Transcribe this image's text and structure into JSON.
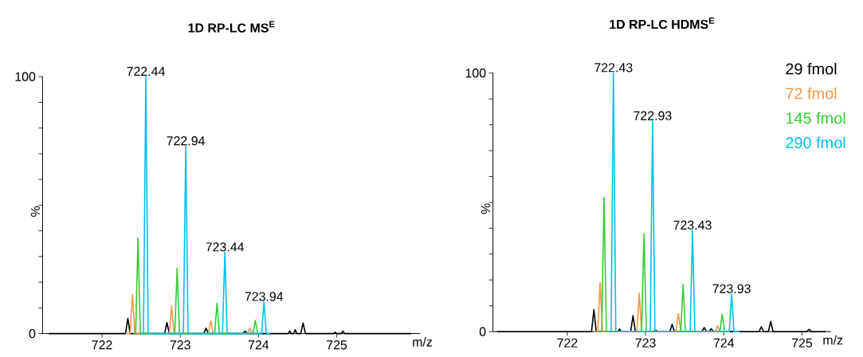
{
  "chart_data": [
    {
      "type": "line",
      "title": "1D RP-LC MS$^{E}$",
      "xlabel": "m/z",
      "ylabel": "%",
      "xlim": [
        721.24,
        726.07
      ],
      "xticks": [
        722,
        723,
        724,
        725
      ],
      "ylim": [
        0,
        100
      ],
      "yticks": [
        0,
        {
          "value": 10,
          "label": null
        },
        {
          "value": 20,
          "label": null
        },
        {
          "value": 30,
          "label": null
        },
        {
          "value": 40,
          "label": null
        },
        {
          "value": 50,
          "label": null
        },
        {
          "value": 60,
          "label": null
        },
        {
          "value": 70,
          "label": null
        },
        {
          "value": 80,
          "label": null
        },
        {
          "value": 90,
          "label": null
        },
        100
      ],
      "annotations": [
        {
          "text": "722.44",
          "x": 722.56,
          "y": 100
        },
        {
          "text": "722.94",
          "x": 723.07,
          "y": 72.9
        },
        {
          "text": "723.44",
          "x": 723.57,
          "y": 31.6
        },
        {
          "text": "723.94",
          "x": 724.07,
          "y": 12.3
        }
      ],
      "series": [
        {
          "color": "#000000",
          "x": [
            721.32,
            722.3,
            722.33,
            722.36,
            722.8,
            722.83,
            722.86,
            723.3,
            723.33,
            723.36,
            723.8,
            723.83,
            723.86,
            724.38,
            724.4,
            724.42,
            724.45,
            724.47,
            724.49,
            724.54,
            724.57,
            724.6,
            724.96,
            724.98,
            725.0,
            725.06,
            725.08,
            725.1,
            725.95
          ],
          "values": [
            0,
            0,
            5.9,
            0,
            0,
            4.3,
            0,
            0,
            2.1,
            0,
            0,
            0.9,
            0,
            0,
            1.0,
            0,
            0,
            1.5,
            0,
            0,
            4.1,
            0,
            0,
            0.5,
            0,
            0,
            1.0,
            0,
            0
          ]
        },
        {
          "color": "#f79646",
          "x": [
            722.3,
            722.36,
            722.39,
            722.42,
            722.86,
            722.89,
            722.92,
            723.36,
            723.39,
            723.42,
            723.86,
            723.89,
            723.92,
            724.0
          ],
          "values": [
            0,
            0,
            15.2,
            0,
            0,
            10.7,
            0,
            0,
            5.0,
            0,
            0,
            2.1,
            0,
            0
          ]
        },
        {
          "color": "#33cc33",
          "x": [
            722.4,
            722.43,
            722.46,
            722.49,
            722.93,
            722.96,
            722.99,
            723.44,
            723.47,
            723.5,
            723.93,
            723.96,
            723.99,
            724.05
          ],
          "values": [
            0,
            0,
            37.2,
            0,
            0,
            25.5,
            0,
            0,
            11.8,
            0,
            0,
            5.1,
            0,
            0
          ]
        },
        {
          "color": "#00c0f0",
          "x": [
            722.5,
            722.53,
            722.56,
            722.59,
            723.04,
            723.07,
            723.1,
            723.54,
            723.57,
            723.6,
            724.04,
            724.07,
            724.1,
            724.15
          ],
          "values": [
            0,
            0,
            100,
            0,
            0,
            72.9,
            0,
            0,
            31.6,
            0,
            0,
            12.3,
            0,
            0
          ]
        }
      ]
    },
    {
      "type": "line",
      "title": "1D RP-LC HDMS$^{E}$",
      "xlabel": "m/z",
      "ylabel": "%",
      "legend": "top right",
      "xlim": [
        721.05,
        725.37
      ],
      "xticks": [
        722,
        723,
        724,
        725
      ],
      "ylim": [
        0,
        100
      ],
      "yticks": [
        0,
        {
          "value": 10,
          "label": null
        },
        {
          "value": 20,
          "label": null
        },
        {
          "value": 30,
          "label": null
        },
        {
          "value": 40,
          "label": null
        },
        {
          "value": 50,
          "label": null
        },
        {
          "value": 60,
          "label": null
        },
        {
          "value": 70,
          "label": null
        },
        {
          "value": 80,
          "label": null
        },
        {
          "value": 90,
          "label": null
        },
        100
      ],
      "annotations": [
        {
          "text": "722.43",
          "x": 722.59,
          "y": 100
        },
        {
          "text": "722.93",
          "x": 723.09,
          "y": 81.4
        },
        {
          "text": "723.43",
          "x": 723.6,
          "y": 39.1
        },
        {
          "text": "723.93",
          "x": 724.1,
          "y": 14.5
        }
      ],
      "series": [
        {
          "name": "29 fmol",
          "color": "#000000",
          "x": [
            721.1,
            722.31,
            722.34,
            722.37,
            722.64,
            722.67,
            722.69,
            722.81,
            722.84,
            722.87,
            723.1,
            723.13,
            723.16,
            723.31,
            723.34,
            723.37,
            723.72,
            723.75,
            723.78,
            723.81,
            723.84,
            723.87,
            724.45,
            724.48,
            724.51,
            724.57,
            724.6,
            724.63,
            725.06,
            725.09,
            725.12,
            725.3
          ],
          "values": [
            0,
            0,
            8.5,
            0,
            0,
            1.0,
            0,
            0,
            6.2,
            0,
            0,
            0.5,
            0,
            0,
            2.8,
            0,
            0,
            1.6,
            0,
            0,
            1.1,
            0,
            0,
            1.9,
            0,
            0,
            4.0,
            0,
            0,
            0.9,
            0,
            0
          ]
        },
        {
          "name": "72 fmol",
          "color": "#f79646",
          "x": [
            722.35,
            722.39,
            722.42,
            722.45,
            722.89,
            722.92,
            722.95,
            723.39,
            723.42,
            723.45,
            723.89,
            723.92,
            723.95,
            724.0
          ],
          "values": [
            0,
            0,
            19.1,
            0,
            0,
            14.9,
            0,
            0,
            7.0,
            0,
            0,
            2.2,
            0,
            0
          ]
        },
        {
          "name": "145 fmol",
          "color": "#33cc33",
          "x": [
            722.4,
            722.44,
            722.47,
            722.5,
            722.95,
            722.98,
            723.01,
            723.45,
            723.48,
            723.51,
            723.95,
            723.98,
            724.01,
            724.05
          ],
          "values": [
            0,
            0,
            51.9,
            0,
            0,
            38.0,
            0,
            0,
            18.4,
            0,
            0,
            6.7,
            0,
            0
          ]
        },
        {
          "name": "290 fmol",
          "color": "#00c0f0",
          "x": [
            722.5,
            722.56,
            722.59,
            722.62,
            723.06,
            723.09,
            723.12,
            723.57,
            723.6,
            723.63,
            724.07,
            724.1,
            724.13,
            724.2
          ],
          "values": [
            0,
            0,
            100,
            0,
            0,
            81.4,
            0,
            0,
            39.1,
            0,
            0,
            14.5,
            0,
            0
          ]
        }
      ]
    }
  ]
}
